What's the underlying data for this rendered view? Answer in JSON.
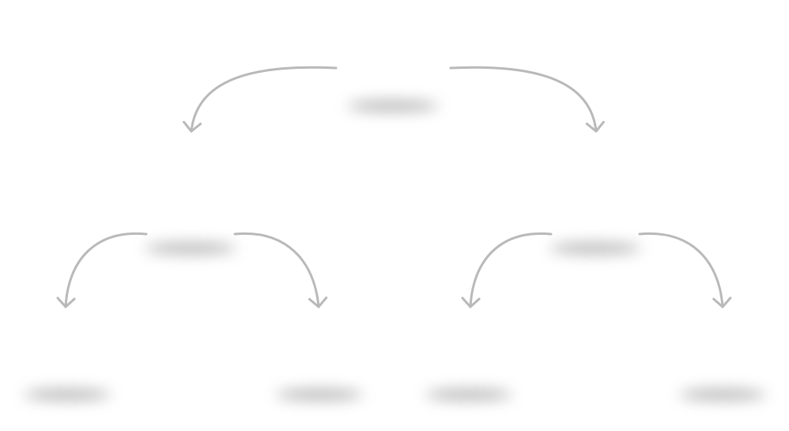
{
  "colors": {
    "arrow": "#b9b9b9",
    "shadow": "#9e9e9e",
    "background": "#ffffff"
  },
  "nodes": [
    {
      "id": "root",
      "level": 0,
      "label": ""
    },
    {
      "id": "left-child",
      "level": 1,
      "label": ""
    },
    {
      "id": "right-child",
      "level": 1,
      "label": ""
    },
    {
      "id": "left-left-leaf",
      "level": 2,
      "label": ""
    },
    {
      "id": "left-right-leaf",
      "level": 2,
      "label": ""
    },
    {
      "id": "right-left-leaf",
      "level": 2,
      "label": ""
    },
    {
      "id": "right-right-leaf",
      "level": 2,
      "label": ""
    }
  ],
  "edges": [
    {
      "from": "root",
      "to": "left-child"
    },
    {
      "from": "root",
      "to": "right-child"
    },
    {
      "from": "left-child",
      "to": "left-left-leaf"
    },
    {
      "from": "left-child",
      "to": "left-right-leaf"
    },
    {
      "from": "right-child",
      "to": "right-left-leaf"
    },
    {
      "from": "right-child",
      "to": "right-right-leaf"
    }
  ]
}
